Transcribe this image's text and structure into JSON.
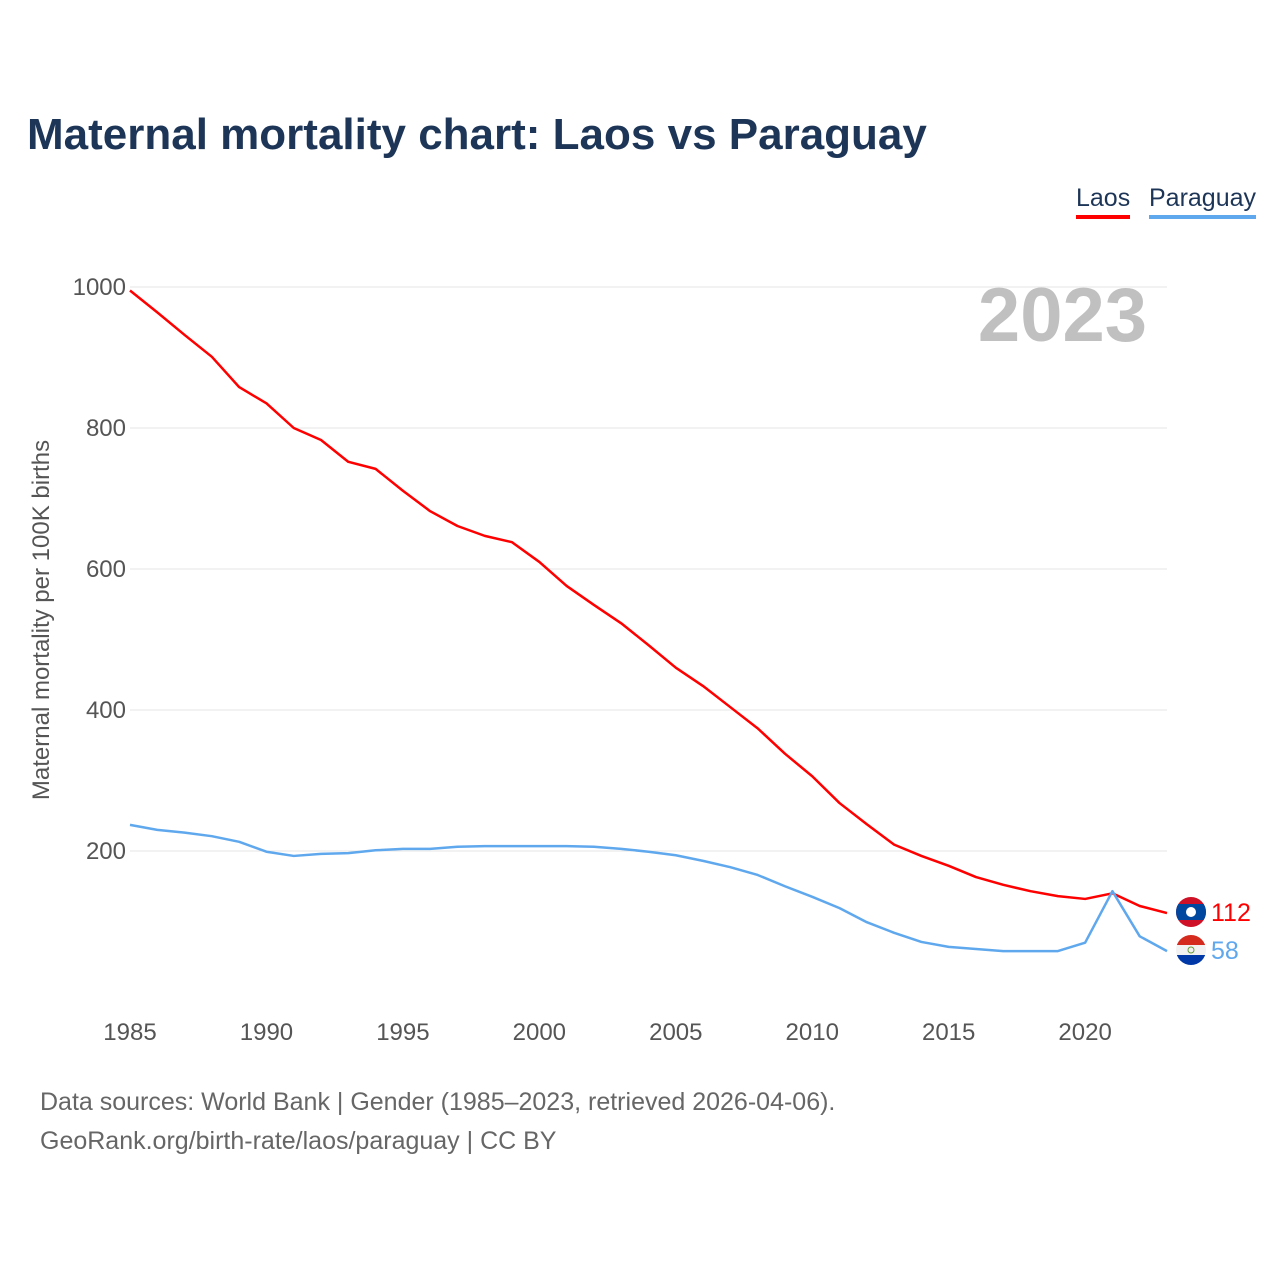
{
  "colors": {
    "laos": "#ff0000",
    "paraguay": "#5fa8ee"
  },
  "chart_data": {
    "type": "line",
    "title": "Maternal mortality chart: Laos vs Paraguay",
    "ylabel": "Maternal mortality per 100K births",
    "xlabel": "",
    "current_year": "2023",
    "ylim": [
      0,
      1000
    ],
    "xlim": [
      1985,
      2023
    ],
    "yticks": [
      200,
      400,
      600,
      800,
      1000
    ],
    "xticks": [
      1985,
      1990,
      1995,
      2000,
      2005,
      2010,
      2015,
      2020
    ],
    "grid": true,
    "legend": "top-right",
    "x": [
      1985,
      1986,
      1987,
      1988,
      1989,
      1990,
      1991,
      1992,
      1993,
      1994,
      1995,
      1996,
      1997,
      1998,
      1999,
      2000,
      2001,
      2002,
      2003,
      2004,
      2005,
      2006,
      2007,
      2008,
      2009,
      2010,
      2011,
      2012,
      2013,
      2014,
      2015,
      2016,
      2017,
      2018,
      2019,
      2020,
      2021,
      2022,
      2023
    ],
    "series": [
      {
        "name": "Laos",
        "end_label": "112",
        "values": [
          995,
          964,
          932,
          901,
          858,
          835,
          800,
          783,
          752,
          742,
          711,
          682,
          661,
          647,
          638,
          610,
          576,
          549,
          523,
          492,
          460,
          434,
          404,
          374,
          338,
          306,
          268,
          238,
          209,
          193,
          179,
          163,
          152,
          143,
          136,
          132,
          140,
          122,
          112
        ]
      },
      {
        "name": "Paraguay",
        "end_label": "58",
        "values": [
          237,
          230,
          226,
          221,
          213,
          199,
          193,
          196,
          197,
          201,
          203,
          203,
          206,
          207,
          207,
          207,
          207,
          206,
          203,
          199,
          194,
          186,
          177,
          166,
          150,
          135,
          119,
          99,
          84,
          71,
          64,
          61,
          58,
          58,
          58,
          70,
          143,
          79,
          58
        ]
      }
    ]
  },
  "footer": {
    "line1": "Data sources: World Bank | Gender (1985–2023, retrieved 2026-04-06).",
    "line2": "GeoRank.org/birth-rate/laos/paraguay | CC BY"
  }
}
